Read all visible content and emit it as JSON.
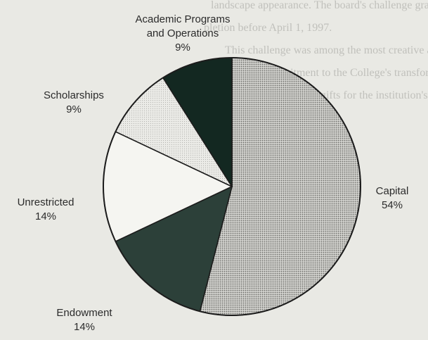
{
  "chart_data": {
    "type": "pie",
    "title": "",
    "slices": [
      {
        "label": "Capital",
        "value": 54,
        "display": "54%",
        "color": "#c9c9c5",
        "pattern": "dots"
      },
      {
        "label": "Endowment",
        "value": 14,
        "display": "14%",
        "color": "#2c4039"
      },
      {
        "label": "Unrestricted",
        "value": 14,
        "display": "14%",
        "color": "#f5f5f1"
      },
      {
        "label": "Scholarships",
        "value": 9,
        "display": "9%",
        "color": "#e2e2de",
        "pattern": "fine"
      },
      {
        "label": "Academic Programs\nand Operations",
        "value": 9,
        "display": "9%",
        "color": "#132821"
      }
    ],
    "start_angle_deg": 0,
    "direction": "clockwise",
    "legend": "none (labels placed beside slices)"
  },
  "background_text": {
    "lines": [
      "landscape appearance. The board's challenge grant",
      "pletion before April 1, 1997.",
      "This challenge was among the most creative and",
      "the board's commitment to the College's transformation.",
      "Capital and endowment gifts for the institution's",
      "College",
      "ment to the College"
    ]
  }
}
